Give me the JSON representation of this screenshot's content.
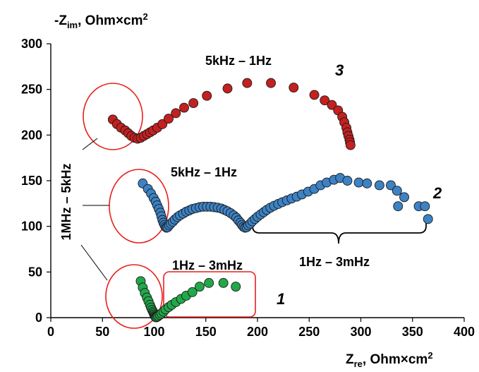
{
  "chart_data": {
    "type": "scatter",
    "title": "",
    "xlabel": "Zre, Ohm×cm²",
    "xlabel_main": "Z",
    "xlabel_sub": "re",
    "xlabel_rest": ", Ohm×cm",
    "xlabel_sup": "2",
    "ylabel": "-Zim, Ohm×cm²",
    "ylabel_main": "-Z",
    "ylabel_sub": "im",
    "ylabel_rest": ", Ohm×cm",
    "ylabel_sup": "2",
    "xlim": [
      0,
      400
    ],
    "ylim": [
      0,
      300
    ],
    "xticks": [
      0,
      50,
      100,
      150,
      200,
      250,
      300,
      350,
      400
    ],
    "yticks": [
      0,
      50,
      100,
      150,
      200,
      250,
      300
    ],
    "grid": false,
    "series": [
      {
        "name": "1",
        "color": "#22a84a",
        "points": [
          [
            87,
            40
          ],
          [
            89,
            33
          ],
          [
            91,
            27
          ],
          [
            93,
            22
          ],
          [
            94.5,
            18
          ],
          [
            96,
            14
          ],
          [
            97,
            11
          ],
          [
            98,
            8.5
          ],
          [
            99,
            6.5
          ],
          [
            99.5,
            5
          ],
          [
            100,
            3.5
          ],
          [
            100.5,
            2.3
          ],
          [
            101,
            1.3
          ],
          [
            101.5,
            0.6
          ],
          [
            102,
            0.3
          ],
          [
            103,
            0.8
          ],
          [
            104,
            1.8
          ],
          [
            105.5,
            3
          ],
          [
            107,
            4.5
          ],
          [
            109,
            6.5
          ],
          [
            111,
            9
          ],
          [
            114,
            11.5
          ],
          [
            117,
            14
          ],
          [
            121,
            17
          ],
          [
            126,
            20.5
          ],
          [
            131,
            24
          ],
          [
            137,
            28
          ],
          [
            144,
            34
          ],
          [
            153,
            38
          ],
          [
            167,
            38
          ],
          [
            179,
            34
          ]
        ]
      },
      {
        "name": "2",
        "color": "#3c82c4",
        "points": [
          [
            89,
            147
          ],
          [
            94,
            141
          ],
          [
            97,
            136
          ],
          [
            99.5,
            131
          ],
          [
            101.5,
            127
          ],
          [
            103,
            123
          ],
          [
            104.5,
            119
          ],
          [
            106,
            115
          ],
          [
            107,
            111
          ],
          [
            108,
            107
          ],
          [
            109,
            104
          ],
          [
            110,
            101.5
          ],
          [
            111,
            99.5
          ],
          [
            112,
            98.5
          ],
          [
            113,
            99
          ],
          [
            114.5,
            101
          ],
          [
            116,
            103
          ],
          [
            118,
            105
          ],
          [
            120,
            107.5
          ],
          [
            122.5,
            110
          ],
          [
            125,
            112
          ],
          [
            128,
            114
          ],
          [
            131,
            116
          ],
          [
            134,
            117.5
          ],
          [
            137,
            119
          ],
          [
            140.5,
            120
          ],
          [
            144,
            121
          ],
          [
            147.5,
            121.5
          ],
          [
            151,
            121.5
          ],
          [
            154.5,
            121.5
          ],
          [
            158,
            121
          ],
          [
            161.5,
            120.5
          ],
          [
            165,
            119.5
          ],
          [
            168,
            118
          ],
          [
            171,
            116.5
          ],
          [
            174,
            114.5
          ],
          [
            177,
            112
          ],
          [
            179.5,
            109.5
          ],
          [
            181.5,
            106.5
          ],
          [
            183.5,
            104
          ],
          [
            185,
            101.5
          ],
          [
            186.5,
            99.5
          ],
          [
            188,
            98.5
          ],
          [
            189.5,
            99
          ],
          [
            191,
            101
          ],
          [
            193,
            103
          ],
          [
            195,
            105.5
          ],
          [
            197.5,
            108
          ],
          [
            200,
            110.5
          ],
          [
            203,
            113
          ],
          [
            206,
            115.5
          ],
          [
            209,
            118
          ],
          [
            212.5,
            120.5
          ],
          [
            216,
            122.5
          ],
          [
            220,
            124.5
          ],
          [
            224,
            126.5
          ],
          [
            228.5,
            128.5
          ],
          [
            233,
            130.5
          ],
          [
            238,
            132.5
          ],
          [
            243,
            135
          ],
          [
            249,
            138
          ],
          [
            255,
            141
          ],
          [
            261,
            145
          ],
          [
            267,
            148
          ],
          [
            274,
            151
          ],
          [
            280,
            153
          ],
          [
            287,
            150
          ],
          [
            298,
            148
          ],
          [
            306,
            147
          ],
          [
            318,
            145
          ],
          [
            329,
            145
          ],
          [
            335,
            139
          ],
          [
            342,
            132
          ],
          [
            336,
            122
          ],
          [
            356,
            122
          ],
          [
            362,
            122
          ],
          [
            365,
            108
          ]
        ]
      },
      {
        "name": "3",
        "color": "#c42020",
        "points": [
          [
            60,
            217
          ],
          [
            64,
            212
          ],
          [
            68,
            208
          ],
          [
            72,
            205
          ],
          [
            75,
            202
          ],
          [
            78,
            199
          ],
          [
            81,
            197
          ],
          [
            84,
            196
          ],
          [
            87,
            197
          ],
          [
            90,
            199
          ],
          [
            93,
            201
          ],
          [
            96,
            203
          ],
          [
            99,
            205
          ],
          [
            103,
            208
          ],
          [
            108,
            212
          ],
          [
            114,
            218
          ],
          [
            121,
            224
          ],
          [
            129,
            230
          ],
          [
            138,
            235
          ],
          [
            151,
            243
          ],
          [
            171,
            251
          ],
          [
            190,
            257
          ],
          [
            213,
            257
          ],
          [
            235,
            252
          ],
          [
            255,
            244
          ],
          [
            265,
            238
          ],
          [
            272,
            233
          ],
          [
            278,
            227
          ],
          [
            282,
            220
          ],
          [
            284,
            214
          ],
          [
            286,
            208
          ],
          [
            287,
            203
          ],
          [
            288,
            199
          ],
          [
            289,
            195
          ],
          [
            289.5,
            192
          ],
          [
            290,
            189
          ]
        ]
      }
    ],
    "annotations": {
      "freq_top": "5kHz – 1Hz",
      "freq_mid": "5kHz – 1Hz",
      "freq_low_left": "1Hz – 3mHz",
      "freq_low_right": "1Hz – 3mHz",
      "freq_vertical": "1MHz – 5kHz",
      "curve_1": "1",
      "curve_2": "2",
      "curve_3": "3"
    },
    "highlight_color": "#e8201c"
  }
}
